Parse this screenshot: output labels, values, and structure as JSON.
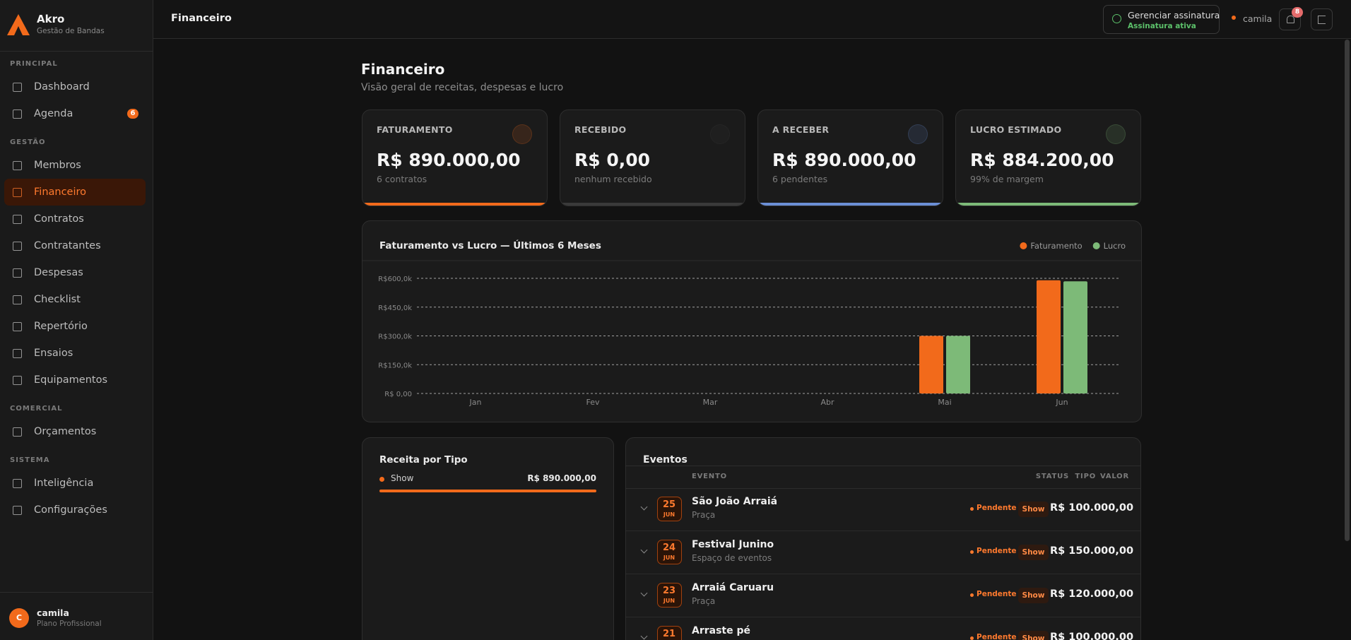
{
  "sidebar": {
    "brand": "Akro",
    "tagline": "Gestão de Bandas",
    "sections": [
      {
        "title": "PRINCIPAL",
        "items": [
          {
            "label": "Dashboard"
          },
          {
            "label": "Agenda",
            "badge": 6
          }
        ]
      },
      {
        "title": "GESTÃO",
        "items": [
          {
            "label": "Membros"
          },
          {
            "label": "Financeiro",
            "active": true
          },
          {
            "label": "Contratos"
          },
          {
            "label": "Contratantes"
          },
          {
            "label": "Despesas"
          },
          {
            "label": "Checklist"
          },
          {
            "label": "Repertório"
          },
          {
            "label": "Ensaios"
          },
          {
            "label": "Equipamentos"
          }
        ]
      },
      {
        "title": "COMERCIAL",
        "items": [
          {
            "label": "Orçamentos"
          }
        ]
      },
      {
        "title": "SISTEMA",
        "items": [
          {
            "label": "Inteligência"
          },
          {
            "label": "Configurações"
          }
        ]
      }
    ],
    "user": {
      "initial": "C",
      "name": "camila",
      "plan": "Plano Profissional"
    }
  },
  "header": {
    "title": "Financeiro",
    "subscription": "Gerenciar assinatura",
    "subscription_status": "Assinatura ativa",
    "user": "camila",
    "notifications": 8
  },
  "page": {
    "title": "Financeiro",
    "subtitle": "Visão geral de receitas, despesas e lucro"
  },
  "cards": [
    {
      "label": "FATURAMENTO",
      "value": "R$ 890.000,00",
      "note": "6 contratos",
      "color": "#f26a1b"
    },
    {
      "label": "RECEBIDO",
      "value": "R$ 0,00",
      "note": "nenhum recebido",
      "color": "#3a3a3a"
    },
    {
      "label": "A RECEBER",
      "value": "R$ 890.000,00",
      "note": "6 pendentes",
      "color": "#6b8fd6"
    },
    {
      "label": "LUCRO ESTIMADO",
      "value": "R$ 884.200,00",
      "note": "99% de margem",
      "color": "#7dba78"
    }
  ],
  "chart_data": {
    "type": "bar",
    "title": "Faturamento vs Lucro — Últimos 6 Meses",
    "categories": [
      "Jan",
      "Fev",
      "Mar",
      "Abr",
      "Mai",
      "Jun"
    ],
    "series": [
      {
        "name": "Faturamento",
        "color": "#f26a1b",
        "values": [
          0,
          0,
          0,
          0,
          300000,
          590000
        ]
      },
      {
        "name": "Lucro",
        "color": "#7dba78",
        "values": [
          0,
          0,
          0,
          0,
          300000,
          584200
        ]
      }
    ],
    "ylim": [
      0,
      600000
    ],
    "yticks": [
      {
        "value": 0,
        "label": "R$ 0,00"
      },
      {
        "value": 150000,
        "label": "R$150,0k"
      },
      {
        "value": 300000,
        "label": "R$300,0k"
      },
      {
        "value": 450000,
        "label": "R$450,0k"
      },
      {
        "value": 600000,
        "label": "R$600,0k"
      }
    ],
    "grid": true,
    "legend": "top-right"
  },
  "revenue_by_type": {
    "title": "Receita por Tipo",
    "items": [
      {
        "name": "Show",
        "value": "R$ 890.000,00"
      }
    ]
  },
  "events": {
    "title": "Eventos",
    "columns": [
      "EVENTO",
      "STATUS",
      "TIPO",
      "VALOR"
    ],
    "rows": [
      {
        "day": "25",
        "month": "JUN",
        "name": "São João Arraiá",
        "place": "Praça",
        "status": "Pendente",
        "type": "Show",
        "value": "R$ 100.000,00"
      },
      {
        "day": "24",
        "month": "JUN",
        "name": "Festival Junino",
        "place": "Espaço de eventos",
        "status": "Pendente",
        "type": "Show",
        "value": "R$ 150.000,00"
      },
      {
        "day": "23",
        "month": "JUN",
        "name": "Arraiá Caruaru",
        "place": "Praça",
        "status": "Pendente",
        "type": "Show",
        "value": "R$ 120.000,00"
      },
      {
        "day": "21",
        "name": "Arraste pé",
        "status": "Pendente",
        "type": "Show",
        "value": "R$ 100.000,00"
      }
    ]
  }
}
